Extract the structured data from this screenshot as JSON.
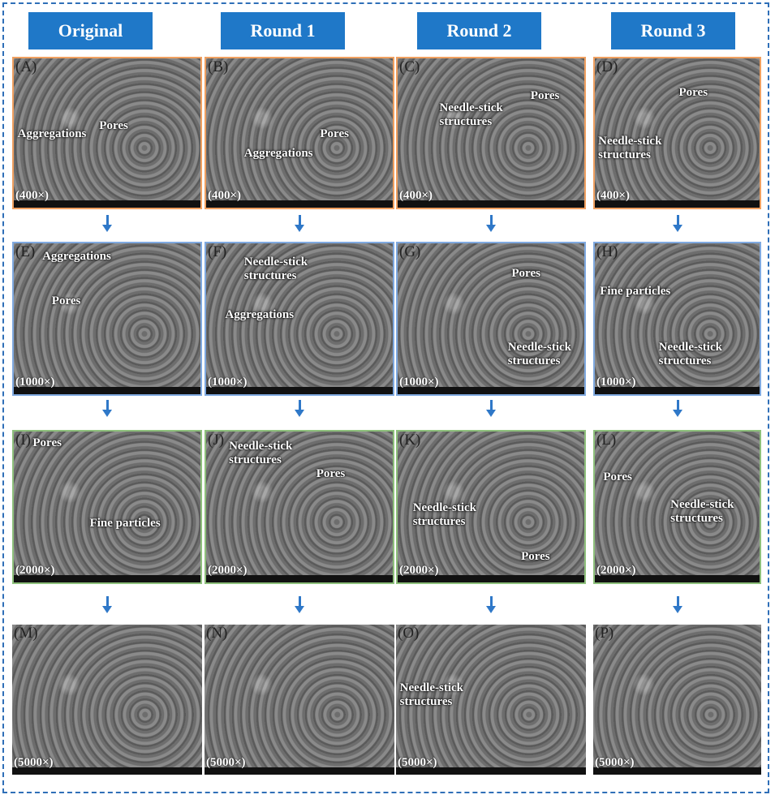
{
  "headers": [
    "Original",
    "Round 1",
    "Round 2",
    "Round 3"
  ],
  "panels": [
    {
      "label": "(A)",
      "magnification": "(400×)",
      "annotations": [
        "Aggregations",
        "Pores"
      ]
    },
    {
      "label": "(B)",
      "magnification": "(400×)",
      "annotations": [
        "Aggregations",
        "Pores"
      ]
    },
    {
      "label": "(C)",
      "magnification": "(400×)",
      "annotations": [
        "Needle-stick structures",
        "Pores"
      ]
    },
    {
      "label": "(D)",
      "magnification": "(400×)",
      "annotations": [
        "Pores",
        "Needle-stick structures"
      ]
    },
    {
      "label": "(E)",
      "magnification": "(1000×)",
      "annotations": [
        "Aggregations",
        "Pores"
      ]
    },
    {
      "label": "(F)",
      "magnification": "(1000×)",
      "annotations": [
        "Needle-stick structures",
        "Aggregations"
      ]
    },
    {
      "label": "(G)",
      "magnification": "(1000×)",
      "annotations": [
        "Pores",
        "Needle-stick structures"
      ]
    },
    {
      "label": "(H)",
      "magnification": "(1000×)",
      "annotations": [
        "Fine particles",
        "Needle-stick structures"
      ]
    },
    {
      "label": "(I)",
      "magnification": "(2000×)",
      "annotations": [
        "Pores",
        "Fine particles"
      ]
    },
    {
      "label": "(J)",
      "magnification": "(2000×)",
      "annotations": [
        "Needle-stick structures",
        "Pores"
      ]
    },
    {
      "label": "(K)",
      "magnification": "(2000×)",
      "annotations": [
        "Needle-stick structures",
        "Pores"
      ]
    },
    {
      "label": "(L)",
      "magnification": "(2000×)",
      "annotations": [
        "Pores",
        "Needle-stick structures"
      ]
    },
    {
      "label": "(M)",
      "magnification": "(5000×)",
      "annotations": []
    },
    {
      "label": "(N)",
      "magnification": "(5000×)",
      "annotations": []
    },
    {
      "label": "(O)",
      "magnification": "(5000×)",
      "annotations": [
        "Needle-stick structures"
      ]
    },
    {
      "label": "(P)",
      "magnification": "(5000×)",
      "annotations": []
    }
  ]
}
